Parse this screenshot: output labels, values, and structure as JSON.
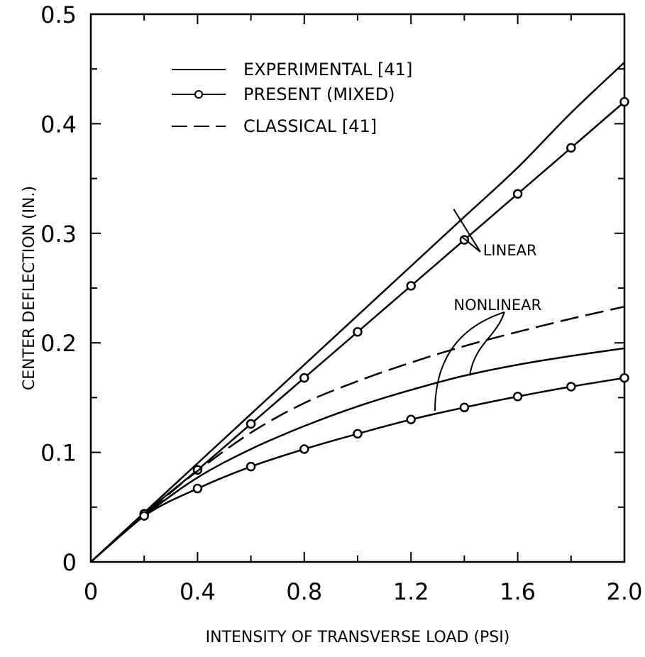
{
  "chart_data": {
    "type": "line",
    "xlabel": "INTENSITY OF TRANSVERSE LOAD (PSI)",
    "ylabel": "CENTER DEFLECTION (IN.)",
    "xlim": [
      0,
      2.0
    ],
    "ylim": [
      0,
      0.5
    ],
    "x_ticks": [
      0,
      0.4,
      0.8,
      1.2,
      1.6,
      2.0
    ],
    "x_tick_labels": [
      "0",
      "0.4",
      "0.8",
      "1.2",
      "1.6",
      "2.0"
    ],
    "y_ticks": [
      0,
      0.1,
      0.2,
      0.3,
      0.4,
      0.5
    ],
    "y_tick_labels": [
      "0",
      "0.1",
      "0.2",
      "0.3",
      "0.4",
      "0.5"
    ],
    "grid": false,
    "legend_position": "top-left",
    "legend": [
      {
        "label": "EXPERIMENTAL [41]",
        "style": "solid"
      },
      {
        "label": "PRESENT (MIXED)",
        "style": "circle-markers"
      },
      {
        "label": "CLASSICAL [41]",
        "style": "dashed"
      }
    ],
    "series": [
      {
        "name": "EXPERIMENTAL [41]",
        "group": "LINEAR",
        "style": "solid",
        "x": [
          0,
          0.2,
          0.4,
          0.6,
          0.8,
          1.0,
          1.2,
          1.4,
          1.6,
          1.8,
          2.0
        ],
        "y": [
          0,
          0.045,
          0.09,
          0.135,
          0.18,
          0.225,
          0.27,
          0.315,
          0.36,
          0.41,
          0.456
        ]
      },
      {
        "name": "PRESENT (MIXED)",
        "group": "LINEAR",
        "style": "circle-markers",
        "x": [
          0,
          0.2,
          0.4,
          0.6,
          0.8,
          1.0,
          1.2,
          1.4,
          1.6,
          1.8,
          2.0
        ],
        "y": [
          0,
          0.044,
          0.084,
          0.126,
          0.168,
          0.21,
          0.252,
          0.294,
          0.336,
          0.378,
          0.42
        ]
      },
      {
        "name": "CLASSICAL [41]",
        "group": "NONLINEAR",
        "style": "dashed",
        "x": [
          0,
          0.2,
          0.4,
          0.6,
          0.8,
          1.0,
          1.2,
          1.4,
          1.6,
          1.8,
          2.0
        ],
        "y": [
          0,
          0.043,
          0.083,
          0.118,
          0.145,
          0.165,
          0.182,
          0.197,
          0.21,
          0.222,
          0.233
        ]
      },
      {
        "name": "EXPERIMENTAL [41]",
        "group": "NONLINEAR",
        "style": "solid",
        "x": [
          0,
          0.2,
          0.4,
          0.6,
          0.8,
          1.0,
          1.2,
          1.4,
          1.6,
          1.8,
          2.0
        ],
        "y": [
          0,
          0.042,
          0.077,
          0.103,
          0.124,
          0.142,
          0.157,
          0.17,
          0.18,
          0.188,
          0.195
        ]
      },
      {
        "name": "PRESENT (MIXED)",
        "group": "NONLINEAR",
        "style": "circle-markers",
        "x": [
          0,
          0.2,
          0.4,
          0.6,
          0.8,
          1.0,
          1.2,
          1.4,
          1.6,
          1.8,
          2.0
        ],
        "y": [
          0,
          0.042,
          0.067,
          0.087,
          0.103,
          0.117,
          0.13,
          0.141,
          0.151,
          0.16,
          0.168
        ]
      }
    ],
    "annotations": [
      {
        "text": "LINEAR",
        "x": 1.47,
        "y": 0.285
      },
      {
        "text": "NONLINEAR",
        "x": 1.36,
        "y": 0.235
      }
    ]
  }
}
